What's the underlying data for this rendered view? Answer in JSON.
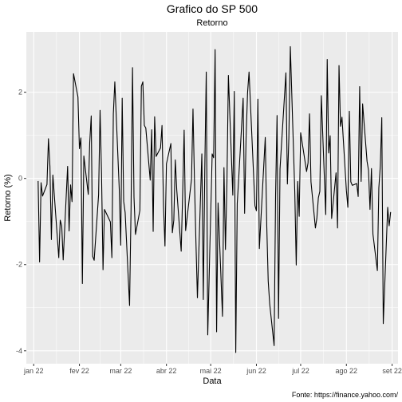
{
  "chart_data": {
    "type": "line",
    "title": "Grafico do SP 500",
    "subtitle": "Retorno",
    "xlabel": "Data",
    "ylabel": "Retorno (%)",
    "caption": "Fonte: https://finance.yahoo.com/",
    "x_ticks": [
      {
        "label": "jan 22",
        "date": "2022-01-01"
      },
      {
        "label": "fev 22",
        "date": "2022-02-01"
      },
      {
        "label": "mar 22",
        "date": "2022-03-01"
      },
      {
        "label": "abr 22",
        "date": "2022-04-01"
      },
      {
        "label": "mai 22",
        "date": "2022-05-01"
      },
      {
        "label": "jun 22",
        "date": "2022-06-01"
      },
      {
        "label": "jul 22",
        "date": "2022-07-01"
      },
      {
        "label": "ago 22",
        "date": "2022-08-01"
      },
      {
        "label": "set 22",
        "date": "2022-09-01"
      }
    ],
    "y_ticks": [
      -4,
      -2,
      0,
      2
    ],
    "xlim": [
      "2021-12-27",
      "2022-09-05"
    ],
    "ylim": [
      -4.3,
      3.4
    ],
    "grid": true,
    "series": [
      {
        "color": "#000000",
        "points": [
          [
            "2022-01-04",
            -0.06
          ],
          [
            "2022-01-05",
            -1.94
          ],
          [
            "2022-01-06",
            -0.1
          ],
          [
            "2022-01-07",
            -0.41
          ],
          [
            "2022-01-10",
            -0.14
          ],
          [
            "2022-01-11",
            0.92
          ],
          [
            "2022-01-12",
            0.28
          ],
          [
            "2022-01-13",
            -1.42
          ],
          [
            "2022-01-14",
            0.08
          ],
          [
            "2022-01-18",
            -1.84
          ],
          [
            "2022-01-19",
            -0.97
          ],
          [
            "2022-01-20",
            -1.1
          ],
          [
            "2022-01-21",
            -1.89
          ],
          [
            "2022-01-24",
            0.28
          ],
          [
            "2022-01-25",
            -1.22
          ],
          [
            "2022-01-26",
            -0.15
          ],
          [
            "2022-01-27",
            -0.54
          ],
          [
            "2022-01-28",
            2.43
          ],
          [
            "2022-01-31",
            1.89
          ],
          [
            "2022-02-01",
            0.69
          ],
          [
            "2022-02-02",
            0.94
          ],
          [
            "2022-02-03",
            -2.44
          ],
          [
            "2022-02-04",
            0.52
          ],
          [
            "2022-02-07",
            -0.37
          ],
          [
            "2022-02-08",
            0.84
          ],
          [
            "2022-02-09",
            1.45
          ],
          [
            "2022-02-10",
            -1.81
          ],
          [
            "2022-02-11",
            -1.9
          ],
          [
            "2022-02-14",
            -0.38
          ],
          [
            "2022-02-15",
            1.58
          ],
          [
            "2022-02-16",
            0.09
          ],
          [
            "2022-02-17",
            -2.12
          ],
          [
            "2022-02-18",
            -0.72
          ],
          [
            "2022-02-22",
            -1.01
          ],
          [
            "2022-02-23",
            -1.84
          ],
          [
            "2022-02-24",
            1.5
          ],
          [
            "2022-02-25",
            2.24
          ],
          [
            "2022-02-28",
            -0.24
          ],
          [
            "2022-03-01",
            -1.55
          ],
          [
            "2022-03-02",
            1.86
          ],
          [
            "2022-03-03",
            -0.53
          ],
          [
            "2022-03-04",
            -0.79
          ],
          [
            "2022-03-07",
            -2.95
          ],
          [
            "2022-03-08",
            -0.72
          ],
          [
            "2022-03-09",
            2.57
          ],
          [
            "2022-03-10",
            -0.43
          ],
          [
            "2022-03-11",
            -1.3
          ],
          [
            "2022-03-14",
            -0.74
          ],
          [
            "2022-03-15",
            2.14
          ],
          [
            "2022-03-16",
            2.24
          ],
          [
            "2022-03-17",
            1.23
          ],
          [
            "2022-03-18",
            1.17
          ],
          [
            "2022-03-21",
            -0.04
          ],
          [
            "2022-03-22",
            1.13
          ],
          [
            "2022-03-23",
            -1.23
          ],
          [
            "2022-03-24",
            1.43
          ],
          [
            "2022-03-25",
            0.51
          ],
          [
            "2022-03-28",
            0.71
          ],
          [
            "2022-03-29",
            1.23
          ],
          [
            "2022-03-30",
            -0.63
          ],
          [
            "2022-03-31",
            -1.57
          ],
          [
            "2022-04-01",
            0.34
          ],
          [
            "2022-04-04",
            0.81
          ],
          [
            "2022-04-05",
            -1.26
          ],
          [
            "2022-04-06",
            -0.97
          ],
          [
            "2022-04-07",
            0.43
          ],
          [
            "2022-04-08",
            -0.27
          ],
          [
            "2022-04-11",
            -1.69
          ],
          [
            "2022-04-12",
            -0.34
          ],
          [
            "2022-04-13",
            1.12
          ],
          [
            "2022-04-14",
            -1.21
          ],
          [
            "2022-04-18",
            -0.02
          ],
          [
            "2022-04-19",
            1.61
          ],
          [
            "2022-04-20",
            -0.06
          ],
          [
            "2022-04-21",
            -1.48
          ],
          [
            "2022-04-22",
            -2.77
          ],
          [
            "2022-04-25",
            0.57
          ],
          [
            "2022-04-26",
            -2.81
          ],
          [
            "2022-04-27",
            0.21
          ],
          [
            "2022-04-28",
            2.47
          ],
          [
            "2022-04-29",
            -3.63
          ],
          [
            "2022-05-02",
            0.57
          ],
          [
            "2022-05-03",
            0.48
          ],
          [
            "2022-05-04",
            2.99
          ],
          [
            "2022-05-05",
            -3.56
          ],
          [
            "2022-05-06",
            -0.57
          ],
          [
            "2022-05-09",
            -3.2
          ],
          [
            "2022-05-10",
            0.25
          ],
          [
            "2022-05-11",
            -1.65
          ],
          [
            "2022-05-12",
            -0.13
          ],
          [
            "2022-05-13",
            2.39
          ],
          [
            "2022-05-16",
            -0.39
          ],
          [
            "2022-05-17",
            2.02
          ],
          [
            "2022-05-18",
            -4.04
          ],
          [
            "2022-05-19",
            -0.58
          ],
          [
            "2022-05-20",
            0.01
          ],
          [
            "2022-05-23",
            1.86
          ],
          [
            "2022-05-24",
            -0.81
          ],
          [
            "2022-05-25",
            0.95
          ],
          [
            "2022-05-26",
            1.99
          ],
          [
            "2022-05-27",
            2.47
          ],
          [
            "2022-05-31",
            -0.63
          ],
          [
            "2022-06-01",
            -0.75
          ],
          [
            "2022-06-02",
            1.84
          ],
          [
            "2022-06-03",
            -1.63
          ],
          [
            "2022-06-06",
            0.31
          ],
          [
            "2022-06-07",
            0.95
          ],
          [
            "2022-06-08",
            -1.08
          ],
          [
            "2022-06-09",
            -2.38
          ],
          [
            "2022-06-10",
            -2.91
          ],
          [
            "2022-06-13",
            -3.88
          ],
          [
            "2022-06-14",
            -0.38
          ],
          [
            "2022-06-15",
            1.46
          ],
          [
            "2022-06-16",
            -3.25
          ],
          [
            "2022-06-17",
            0.22
          ],
          [
            "2022-06-21",
            2.45
          ],
          [
            "2022-06-22",
            -0.13
          ],
          [
            "2022-06-23",
            0.95
          ],
          [
            "2022-06-24",
            3.06
          ],
          [
            "2022-06-27",
            -0.3
          ],
          [
            "2022-06-28",
            -2.01
          ],
          [
            "2022-06-29",
            -0.07
          ],
          [
            "2022-06-30",
            -0.88
          ],
          [
            "2022-07-01",
            1.06
          ],
          [
            "2022-07-05",
            0.16
          ],
          [
            "2022-07-06",
            0.36
          ],
          [
            "2022-07-07",
            1.5
          ],
          [
            "2022-07-08",
            -0.08
          ],
          [
            "2022-07-11",
            -1.15
          ],
          [
            "2022-07-12",
            -0.92
          ],
          [
            "2022-07-13",
            -0.45
          ],
          [
            "2022-07-14",
            -0.3
          ],
          [
            "2022-07-15",
            1.92
          ],
          [
            "2022-07-18",
            -0.84
          ],
          [
            "2022-07-19",
            2.76
          ],
          [
            "2022-07-20",
            0.59
          ],
          [
            "2022-07-21",
            0.99
          ],
          [
            "2022-07-22",
            -0.93
          ],
          [
            "2022-07-25",
            0.13
          ],
          [
            "2022-07-26",
            -1.15
          ],
          [
            "2022-07-27",
            2.62
          ],
          [
            "2022-07-28",
            1.21
          ],
          [
            "2022-07-29",
            1.42
          ],
          [
            "2022-08-01",
            -0.28
          ],
          [
            "2022-08-02",
            -0.67
          ],
          [
            "2022-08-03",
            1.56
          ],
          [
            "2022-08-04",
            -0.08
          ],
          [
            "2022-08-05",
            -0.16
          ],
          [
            "2022-08-08",
            -0.12
          ],
          [
            "2022-08-09",
            -0.42
          ],
          [
            "2022-08-10",
            2.13
          ],
          [
            "2022-08-11",
            -0.07
          ],
          [
            "2022-08-12",
            1.73
          ],
          [
            "2022-08-15",
            0.4
          ],
          [
            "2022-08-16",
            0.19
          ],
          [
            "2022-08-17",
            -0.72
          ],
          [
            "2022-08-18",
            0.23
          ],
          [
            "2022-08-19",
            -1.29
          ],
          [
            "2022-08-22",
            -2.14
          ],
          [
            "2022-08-23",
            -0.22
          ],
          [
            "2022-08-24",
            0.29
          ],
          [
            "2022-08-25",
            1.41
          ],
          [
            "2022-08-26",
            -3.37
          ],
          [
            "2022-08-29",
            -0.67
          ],
          [
            "2022-08-30",
            -1.1
          ],
          [
            "2022-08-31",
            -0.78
          ]
        ]
      }
    ]
  }
}
